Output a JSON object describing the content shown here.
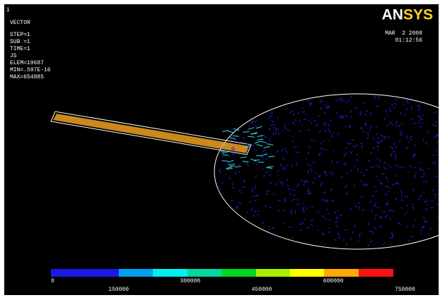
{
  "window_number": "1",
  "header": {
    "title": "VECTOR",
    "lines": [
      "STEP=1",
      "SUB =1",
      "TIME=1",
      "JS",
      "ELEM=19687",
      "MIN=.597E-16",
      "MAX=654885"
    ]
  },
  "logo": "ANSYS",
  "date": "MAR  2 2008",
  "time": "01:12:56",
  "colorbar_labels": [
    0,
    150000,
    300000,
    450000,
    600000,
    750000
  ]
}
